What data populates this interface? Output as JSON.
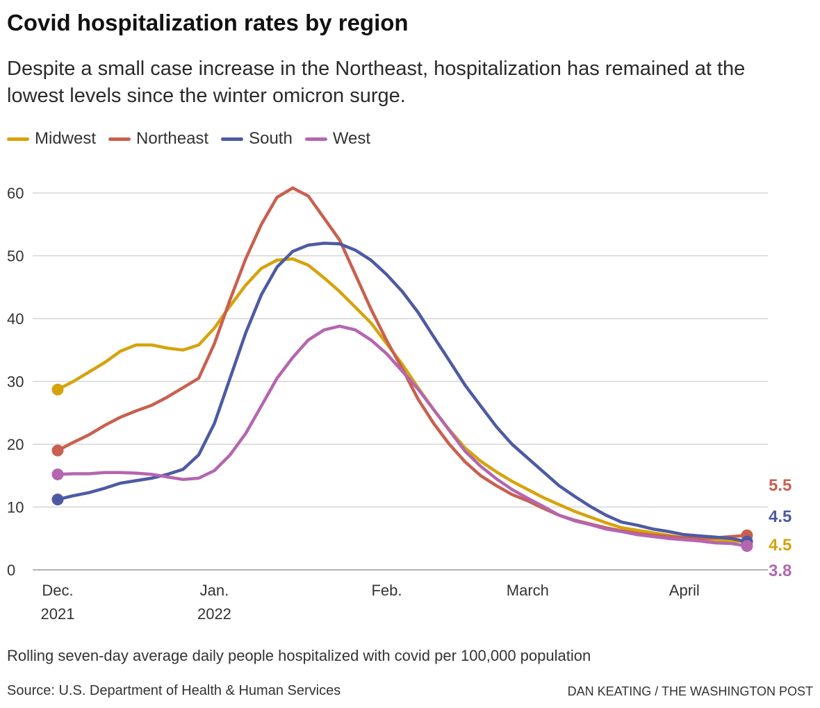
{
  "chart_data": {
    "type": "line",
    "title": "Covid hospitalization rates by region",
    "subtitle": "Despite a small case increase in the Northeast, hospitalization has remained at the lowest levels since the winter omicron surge.",
    "caption": "Rolling seven-day average daily people hospitalized with covid per 100,000 population",
    "source": "Source: U.S. Department of Health & Human Services",
    "credit": "DAN KEATING / THE WASHINGTON POST",
    "categories": [
      "Dec.\n2021",
      null,
      null,
      null,
      null,
      null,
      null,
      null,
      null,
      null,
      "Jan.\n2022",
      null,
      null,
      null,
      null,
      null,
      null,
      null,
      null,
      null,
      null,
      "Feb.",
      null,
      null,
      null,
      null,
      null,
      null,
      null,
      null,
      "March",
      null,
      null,
      null,
      null,
      null,
      null,
      null,
      null,
      null,
      "April",
      null,
      null,
      null,
      null
    ],
    "ylim": [
      0,
      60
    ],
    "yticks": [
      0,
      10,
      20,
      30,
      40,
      50,
      60
    ],
    "grid": true,
    "legend": "top",
    "series": [
      {
        "name": "Midwest",
        "color": "#d6a30c",
        "values": [
          28.7,
          30,
          31.5,
          33,
          34.8,
          35.8,
          35.8,
          35.3,
          35,
          35.8,
          38.5,
          42,
          45.3,
          48,
          49.3,
          49.5,
          48.5,
          46.5,
          44.3,
          41.8,
          39.3,
          36,
          32.7,
          29,
          25.5,
          22.3,
          19.4,
          17.3,
          15.6,
          14.1,
          12.8,
          11.5,
          10.4,
          9.3,
          8.4,
          7.5,
          6.7,
          6.3,
          5.9,
          5.5,
          5.1,
          4.9,
          4.8,
          4.6,
          4.5
        ]
      },
      {
        "name": "Northeast",
        "color": "#c9604f",
        "values": [
          19,
          20.3,
          21.5,
          23,
          24.3,
          25.3,
          26.2,
          27.5,
          29,
          30.5,
          36,
          43,
          49.5,
          55,
          59.3,
          60.8,
          59.5,
          56,
          52.5,
          47,
          41.5,
          36.5,
          32,
          27.2,
          23.3,
          20,
          17.2,
          15,
          13.4,
          12,
          11,
          9.8,
          8.7,
          7.9,
          7.3,
          6.7,
          6.2,
          5.8,
          5.5,
          5.3,
          5.1,
          5.0,
          5.1,
          5.3,
          5.5
        ]
      },
      {
        "name": "South",
        "color": "#4d5aa3",
        "values": [
          11.2,
          11.8,
          12.3,
          13,
          13.8,
          14.2,
          14.6,
          15.2,
          16,
          18.3,
          23.3,
          30.5,
          37.7,
          43.8,
          48.2,
          50.7,
          51.7,
          52,
          51.9,
          50.9,
          49.3,
          47,
          44.3,
          41,
          37.1,
          33.3,
          29.4,
          26.1,
          22.8,
          20,
          17.8,
          15.6,
          13.4,
          11.7,
          10.1,
          8.7,
          7.6,
          7.1,
          6.5,
          6.1,
          5.6,
          5.4,
          5.2,
          5,
          4.5
        ]
      },
      {
        "name": "West",
        "color": "#b466b0",
        "values": [
          15.2,
          15.3,
          15.3,
          15.5,
          15.5,
          15.4,
          15.2,
          14.8,
          14.4,
          14.6,
          15.8,
          18.3,
          21.7,
          26.1,
          30.5,
          33.8,
          36.6,
          38.2,
          38.8,
          38.2,
          36.6,
          34.4,
          31.6,
          28.8,
          25.5,
          22.2,
          18.9,
          16.5,
          14.5,
          12.8,
          11.4,
          10.1,
          8.7,
          7.8,
          7.2,
          6.5,
          6.1,
          5.6,
          5.3,
          5,
          4.8,
          4.6,
          4.3,
          4.2,
          3.8
        ]
      }
    ]
  }
}
